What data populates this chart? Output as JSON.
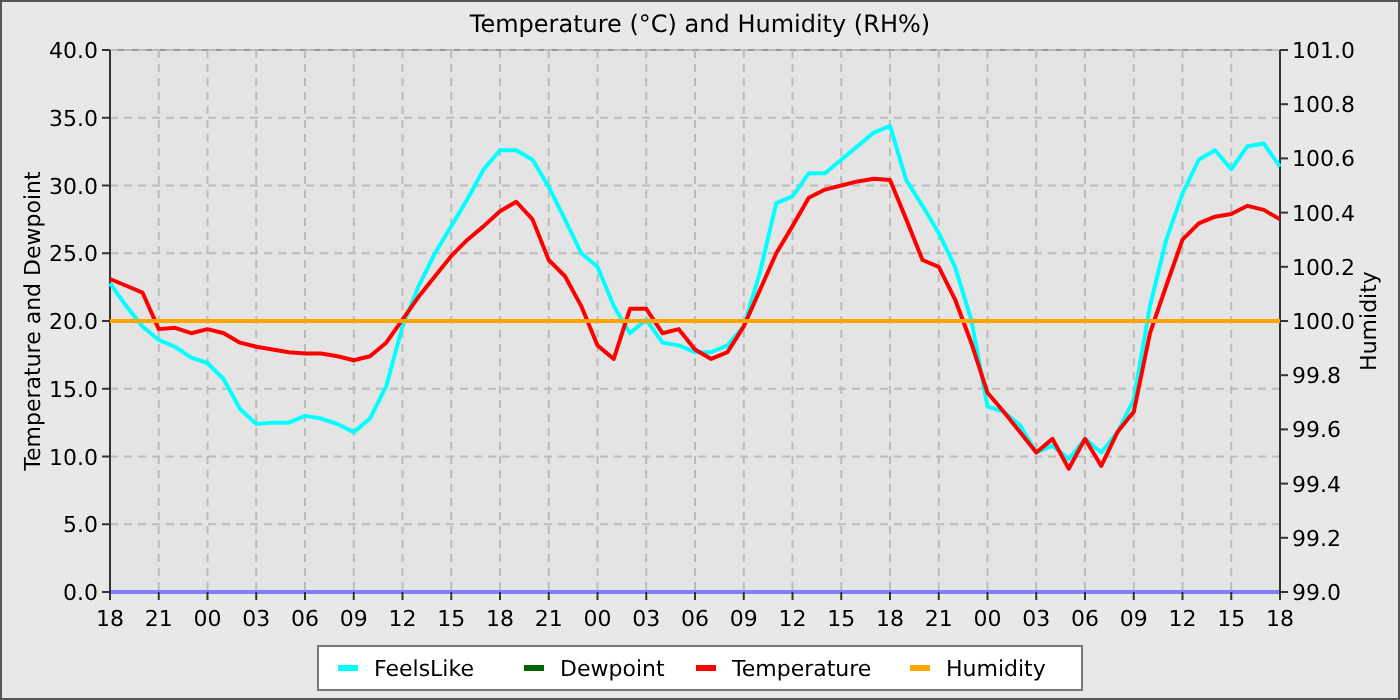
{
  "chart_data": {
    "type": "line",
    "title": "Temperature (°C) and Humidity (RH%)",
    "ylabel": "Temperature and Dewpoint",
    "y2label": "Humidity",
    "categories": [
      "18",
      null,
      null,
      "21",
      null,
      null,
      "00",
      null,
      null,
      "03",
      null,
      null,
      "06",
      null,
      null,
      "09",
      null,
      null,
      "12",
      null,
      null,
      "15",
      null,
      null,
      "18",
      null,
      null,
      "21",
      null,
      null,
      "00",
      null,
      null,
      "03",
      null,
      null,
      "06",
      null,
      null,
      "09",
      null,
      null,
      "12",
      null,
      null,
      "15",
      null,
      null,
      "18",
      null,
      null,
      "21",
      null,
      null,
      "00",
      null,
      null,
      "03",
      null,
      null,
      "06",
      null,
      null,
      "09",
      null,
      null,
      "12",
      null,
      null,
      "15",
      null,
      null,
      "18"
    ],
    "series": [
      {
        "name": "FeelsLike",
        "color": "#00ffff",
        "values": [
          22.8,
          21.1,
          19.6,
          18.6,
          18.1,
          17.3,
          16.9,
          15.7,
          13.5,
          12.4,
          12.5,
          12.5,
          13,
          12.8,
          12.4,
          11.8,
          12.8,
          15.2,
          19.6,
          22.6,
          25,
          27,
          29,
          31.2,
          32.6,
          32.6,
          31.9,
          29.9,
          27.5,
          25,
          24,
          21.1,
          19.1,
          20.1,
          18.4,
          18.2,
          17.7,
          17.7,
          18.2,
          19.6,
          23.6,
          28.7,
          29.2,
          30.9,
          30.9,
          31.9,
          32.9,
          33.9,
          34.4,
          30.4,
          28.5,
          26.5,
          24,
          20.1,
          13.7,
          13.3,
          12.3,
          10.3,
          10.8,
          9.8,
          11.3,
          10.3,
          11.8,
          14.2,
          21.1,
          26,
          29.4,
          31.9,
          32.6,
          31.2,
          32.9,
          33.1,
          31.4
        ]
      },
      {
        "name": "Dewpoint",
        "color": "#006400",
        "values": [
          null,
          null,
          null,
          null,
          null,
          null,
          null,
          null,
          null,
          null,
          null,
          null,
          null,
          null,
          null,
          null,
          null,
          null,
          null,
          null,
          null,
          null,
          null,
          null,
          null,
          null,
          null,
          null,
          null,
          null,
          null,
          null,
          null,
          null,
          null,
          null,
          null,
          null,
          null,
          null,
          null,
          null,
          null,
          null,
          null,
          null,
          null,
          null,
          null,
          null,
          null,
          null,
          null,
          null,
          null,
          null,
          null,
          null,
          null,
          null,
          null,
          null,
          null,
          null,
          null,
          null,
          null,
          null,
          null,
          null,
          null,
          null,
          null
        ]
      },
      {
        "name": "Temperature",
        "color": "#ff0000",
        "values": [
          23.1,
          22.6,
          22.1,
          19.4,
          19.5,
          19.1,
          19.4,
          19.1,
          18.4,
          18.1,
          17.9,
          17.7,
          17.6,
          17.6,
          17.4,
          17.1,
          17.4,
          18.4,
          20.1,
          21.8,
          23.3,
          24.8,
          26,
          27,
          28.1,
          28.8,
          27.5,
          24.5,
          23.3,
          21.1,
          18.2,
          17.2,
          20.9,
          20.9,
          19.1,
          19.4,
          17.9,
          17.2,
          17.7,
          19.6,
          22.3,
          25,
          27,
          29.1,
          29.7,
          30,
          30.3,
          30.5,
          30.4,
          27.5,
          24.5,
          24,
          21.6,
          18.4,
          14.7,
          13.3,
          11.8,
          10.3,
          11.3,
          9.1,
          11.3,
          9.3,
          11.8,
          13.3,
          19.1,
          22.6,
          26,
          27.2,
          27.7,
          27.9,
          28.5,
          28.2,
          27.5
        ]
      },
      {
        "name": "Humidity",
        "color": "#ffa500",
        "axis": "y2",
        "values": [
          100,
          100,
          100,
          100,
          100,
          100,
          100,
          100,
          100,
          100,
          100,
          100,
          100,
          100,
          100,
          100,
          100,
          100,
          100,
          100,
          100,
          100,
          100,
          100,
          100,
          100,
          100,
          100,
          100,
          100,
          100,
          100,
          100,
          100,
          100,
          100,
          100,
          100,
          100,
          100,
          100,
          100,
          100,
          100,
          100,
          100,
          100,
          100,
          100,
          100,
          100,
          100,
          100,
          100,
          100,
          100,
          100,
          100,
          100,
          100,
          100,
          100,
          100,
          100,
          100,
          100,
          100,
          100,
          100,
          100,
          100,
          100,
          100
        ]
      }
    ],
    "ylim": [
      0,
      40
    ],
    "yticks": [
      {
        "value": 0,
        "label": "0.0"
      },
      {
        "value": 5,
        "label": "5.0"
      },
      {
        "value": 10,
        "label": "10.0"
      },
      {
        "value": 15,
        "label": "15.0"
      },
      {
        "value": 20,
        "label": "20.0"
      },
      {
        "value": 25,
        "label": "25.0"
      },
      {
        "value": 30,
        "label": "30.0"
      },
      {
        "value": 35,
        "label": "35.0"
      },
      {
        "value": 40,
        "label": "40.0"
      }
    ],
    "y2lim": [
      99,
      101
    ],
    "y2ticks": [
      {
        "value": 99,
        "label": "99.0"
      },
      {
        "value": 99.2,
        "label": "99.2"
      },
      {
        "value": 99.4,
        "label": "99.4"
      },
      {
        "value": 99.6,
        "label": "99.6"
      },
      {
        "value": 99.8,
        "label": "99.8"
      },
      {
        "value": 100,
        "label": "100.0"
      },
      {
        "value": 100.2,
        "label": "100.2"
      },
      {
        "value": 100.4,
        "label": "100.4"
      },
      {
        "value": 100.6,
        "label": "100.6"
      },
      {
        "value": 100.8,
        "label": "100.8"
      },
      {
        "value": 101,
        "label": "101.0"
      }
    ],
    "grid": true,
    "legend": "bottom",
    "marker": "none",
    "line_style": "solid"
  }
}
